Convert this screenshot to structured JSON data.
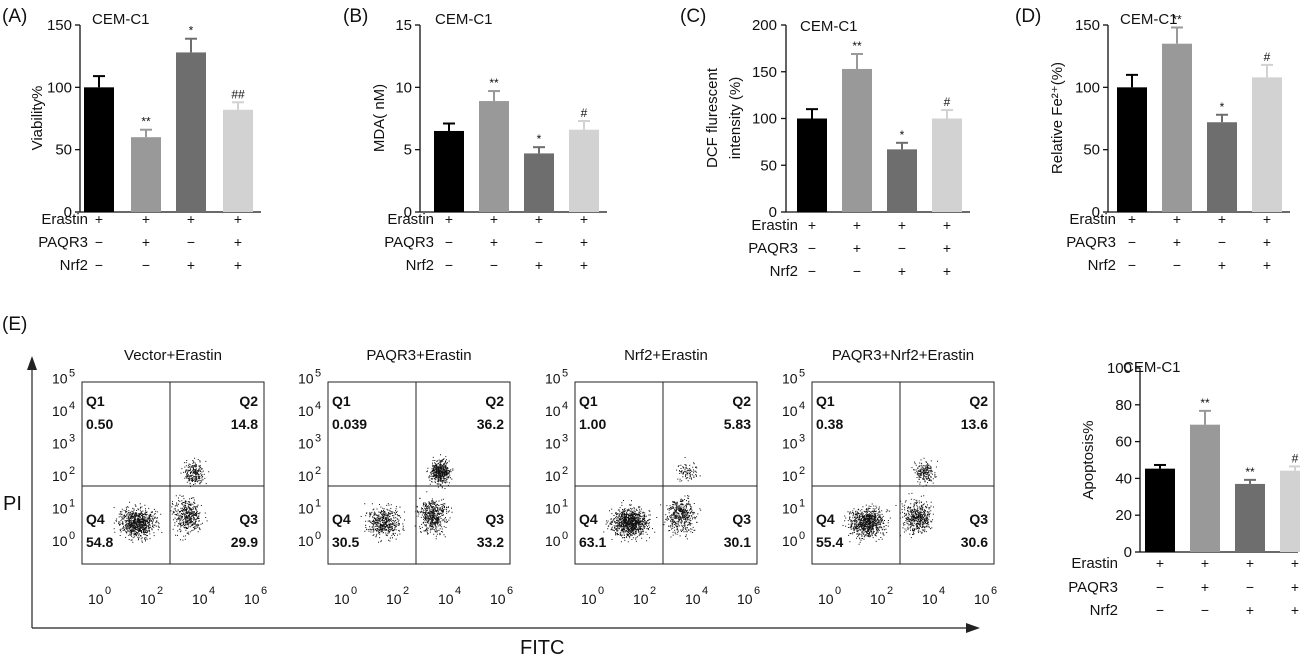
{
  "conditions": {
    "erastin": [
      "+",
      "+",
      "+",
      "+"
    ],
    "paqr3": [
      "−",
      "+",
      "−",
      "+"
    ],
    "nrf2": [
      "−",
      "−",
      "+",
      "+"
    ]
  },
  "row_labels": {
    "erastin": "Erastin",
    "paqr3": "PAQR3",
    "nrf2": "Nrf2"
  },
  "colors": {
    "bars": [
      "#000000",
      "#999999",
      "#6e6e6e",
      "#d2d2d2"
    ],
    "dots": "#111111"
  },
  "chart_data": [
    {
      "panel": "(A)",
      "type": "bar",
      "title": "CEM-C1",
      "ylabel": "Viability%",
      "ylim": [
        0,
        150
      ],
      "yticks": [
        0,
        50,
        100,
        150
      ],
      "values": [
        100,
        60,
        128,
        82
      ],
      "errors": [
        9,
        6,
        11,
        6
      ],
      "annotations": [
        "",
        "**",
        "*",
        "##"
      ]
    },
    {
      "panel": "(B)",
      "type": "bar",
      "title": "CEM-C1",
      "ylabel": "MDA( nM)",
      "ylim": [
        0,
        15
      ],
      "yticks": [
        0,
        5,
        10,
        15
      ],
      "values": [
        6.5,
        8.9,
        4.7,
        6.6
      ],
      "errors": [
        0.6,
        0.8,
        0.5,
        0.7
      ],
      "annotations": [
        "",
        "**",
        "*",
        "#"
      ]
    },
    {
      "panel": "(C)",
      "type": "bar",
      "title": "CEM-C1",
      "ylabel": [
        "DCF flurescent",
        "intensity (%)"
      ],
      "ylim": [
        0,
        200
      ],
      "yticks": [
        0,
        50,
        100,
        150,
        200
      ],
      "values": [
        100,
        153,
        67,
        100
      ],
      "errors": [
        10,
        16,
        7,
        9
      ],
      "annotations": [
        "",
        "**",
        "*",
        "#"
      ]
    },
    {
      "panel": "(D)",
      "type": "bar",
      "title": "CEM-C1",
      "ylabel": "Relative Fe²⁺(%)",
      "ylim": [
        0,
        150
      ],
      "yticks": [
        0,
        50,
        100,
        150
      ],
      "values": [
        100,
        135,
        72,
        108
      ],
      "errors": [
        10,
        13,
        6,
        10
      ],
      "annotations": [
        "",
        "**",
        "*",
        "#"
      ]
    },
    {
      "panel": "(E)",
      "type": "bar",
      "title": "CEM-C1",
      "ylabel": "Apoptosis%",
      "ylim": [
        0,
        100
      ],
      "yticks": [
        0,
        20,
        40,
        60,
        80,
        100
      ],
      "values": [
        45.3,
        69.2,
        37.0,
        44.2
      ],
      "errors": [
        2,
        7.5,
        2.2,
        2.3
      ],
      "annotations": [
        "",
        "**",
        "**",
        "#"
      ]
    },
    {
      "panel": "(E)",
      "type": "scatter",
      "subtype": "flow-cytometry",
      "xlabel": "FITC",
      "ylabel": "PI",
      "x_ticks": [
        "0",
        "2",
        "4",
        "6"
      ],
      "y_ticks": [
        "0",
        "1",
        "2",
        "3",
        "4",
        "5"
      ],
      "plots": [
        {
          "title": "Vector+Erastin",
          "quadrants": {
            "Q1": "0.50",
            "Q2": "14.8",
            "Q3": "29.9",
            "Q4": "54.8"
          },
          "mix": [
            0.55,
            0.3,
            0.15
          ],
          "seed": 11
        },
        {
          "title": "PAQR3+Erastin",
          "quadrants": {
            "Q1": "0.039",
            "Q2": "36.2",
            "Q3": "33.2",
            "Q4": "30.5"
          },
          "mix": [
            0.31,
            0.33,
            0.36
          ],
          "seed": 23
        },
        {
          "title": "Nrf2+Erastin",
          "quadrants": {
            "Q1": "1.00",
            "Q2": "5.83",
            "Q3": "30.1",
            "Q4": "63.1"
          },
          "mix": [
            0.63,
            0.31,
            0.06
          ],
          "seed": 37
        },
        {
          "title": "PAQR3+Nrf2+Erastin",
          "quadrants": {
            "Q1": "0.38",
            "Q2": "13.6",
            "Q3": "30.6",
            "Q4": "55.4"
          },
          "mix": [
            0.55,
            0.31,
            0.14
          ],
          "seed": 53
        }
      ]
    }
  ]
}
